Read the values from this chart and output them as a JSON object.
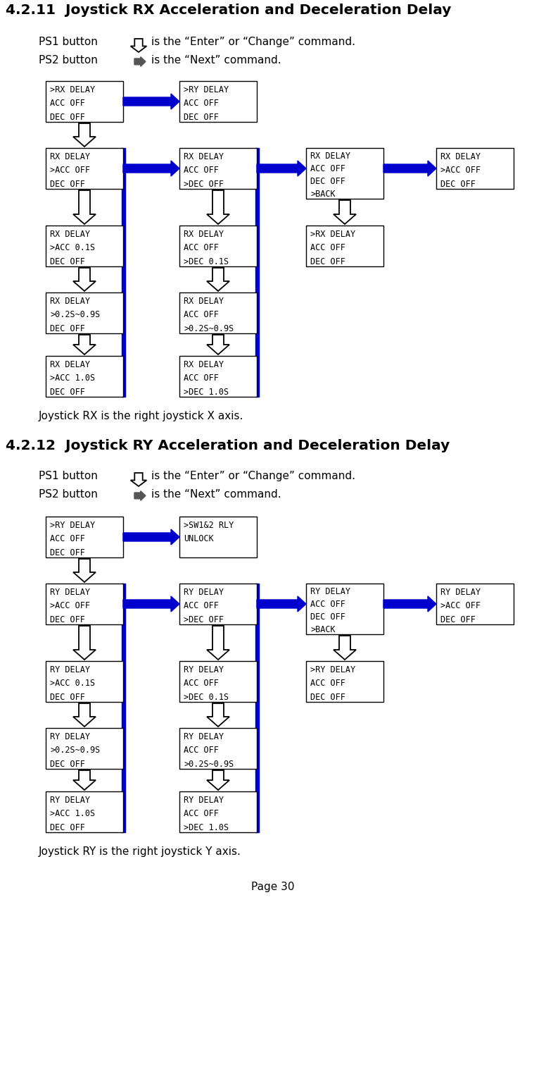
{
  "title1": "4.2.11  Joystick RX Acceleration and Deceleration Delay",
  "title2": "4.2.12  Joystick RY Acceleration and Deceleration Delay",
  "ps1_desc": "is the “Enter” or “Change” command.",
  "ps2_desc": "is the “Next” command.",
  "joystick_rx_note": "Joystick RX is the right joystick X axis.",
  "joystick_ry_note": "Joystick RY is the right joystick Y axis.",
  "page": "Page 30",
  "bg_color": "#ffffff",
  "arrow_blue": "#0000cc",
  "rx_rows": [
    [
      ">RX DELAY\nACC OFF\nDEC OFF",
      ">RY DELAY\nACC OFF\nDEC OFF"
    ],
    [
      "RX DELAY\n>ACC OFF\nDEC OFF",
      "RX DELAY\nACC OFF\n>DEC OFF",
      "RX DELAY\nACC OFF\nDEC OFF\n>BACK",
      "RX DELAY\n>ACC OFF\nDEC OFF"
    ],
    [
      "RX DELAY\n>ACC 0.1S\nDEC OFF",
      "RX DELAY\nACC OFF\n>DEC 0.1S",
      ">RX DELAY\nACC OFF\nDEC OFF"
    ],
    [
      "RX DELAY\n>0.2S~0.9S\nDEC OFF",
      "RX DELAY\nACC OFF\n>0.2S~0.9S"
    ],
    [
      "RX DELAY\n>ACC 1.0S\nDEC OFF",
      "RX DELAY\nACC OFF\n>DEC 1.0S"
    ]
  ],
  "ry_rows": [
    [
      ">RY DELAY\nACC OFF\nDEC OFF",
      ">SW1&2 RLY\nUNLOCK"
    ],
    [
      "RY DELAY\n>ACC OFF\nDEC OFF",
      "RY DELAY\nACC OFF\n>DEC OFF",
      "RY DELAY\nACC OFF\nDEC OFF\n>BACK",
      "RY DELAY\n>ACC OFF\nDEC OFF"
    ],
    [
      "RY DELAY\n>ACC 0.1S\nDEC OFF",
      "RY DELAY\nACC OFF\n>DEC 0.1S",
      ">RY DELAY\nACC OFF\nDEC OFF"
    ],
    [
      "RY DELAY\n>0.2S~0.9S\nDEC OFF",
      "RY DELAY\nACC OFF\n>0.2S~0.9S"
    ],
    [
      "RY DELAY\n>ACC 1.0S\nDEC OFF",
      "RY DELAY\nACC OFF\n>DEC 1.0S"
    ]
  ]
}
